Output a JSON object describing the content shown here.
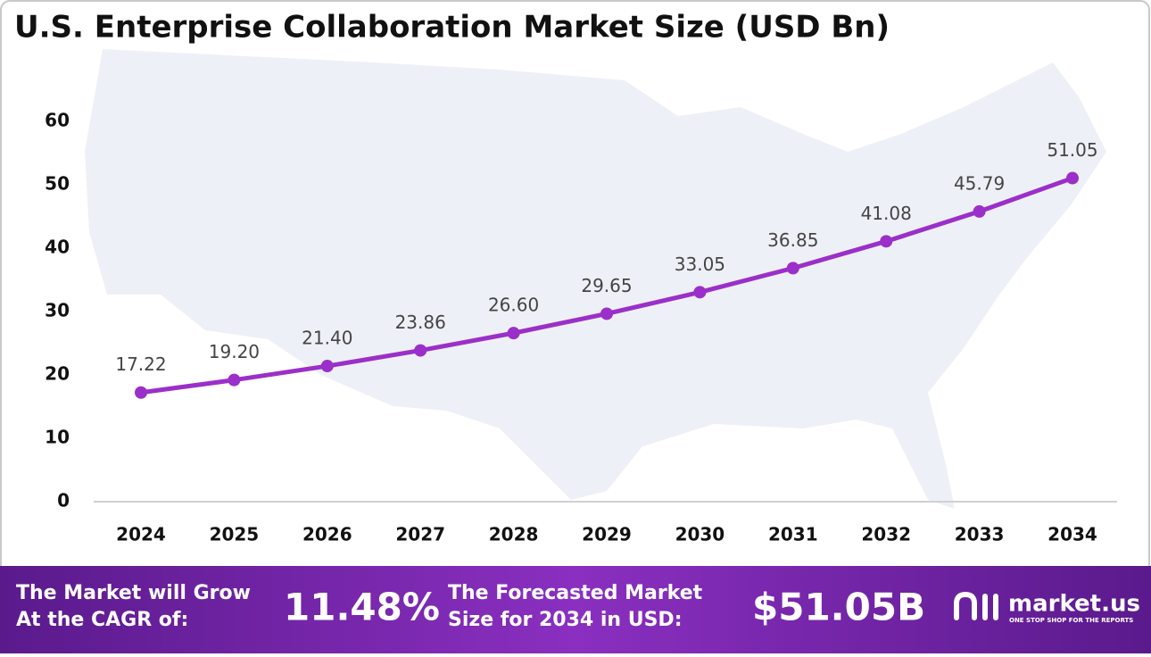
{
  "chart_data": {
    "type": "line",
    "title": "U.S. Enterprise Collaboration Market Size (USD Bn)",
    "categories": [
      "2024",
      "2025",
      "2026",
      "2027",
      "2028",
      "2029",
      "2030",
      "2031",
      "2032",
      "2033",
      "2034"
    ],
    "values": [
      17.22,
      19.2,
      21.4,
      23.86,
      26.6,
      29.65,
      33.05,
      36.85,
      41.08,
      45.79,
      51.05
    ],
    "value_labels": [
      "17.22",
      "19.20",
      "21.40",
      "23.86",
      "26.60",
      "29.65",
      "33.05",
      "36.85",
      "41.08",
      "45.79",
      "51.05"
    ],
    "color": "#9b2fc9",
    "ylim": [
      0,
      60
    ],
    "yticks": [
      0,
      10,
      20,
      30,
      40,
      50,
      60
    ],
    "grid": false
  },
  "footer": {
    "cagr_label": [
      "The Market will Grow",
      "At the CAGR of:"
    ],
    "cagr": "11.48%",
    "forecast_label": [
      "The Forecasted Market",
      "Size for 2034 in USD:"
    ],
    "forecast": "$51.05B",
    "logo": "market.us",
    "tagline": "ONE STOP SHOP FOR THE REPORTS"
  }
}
